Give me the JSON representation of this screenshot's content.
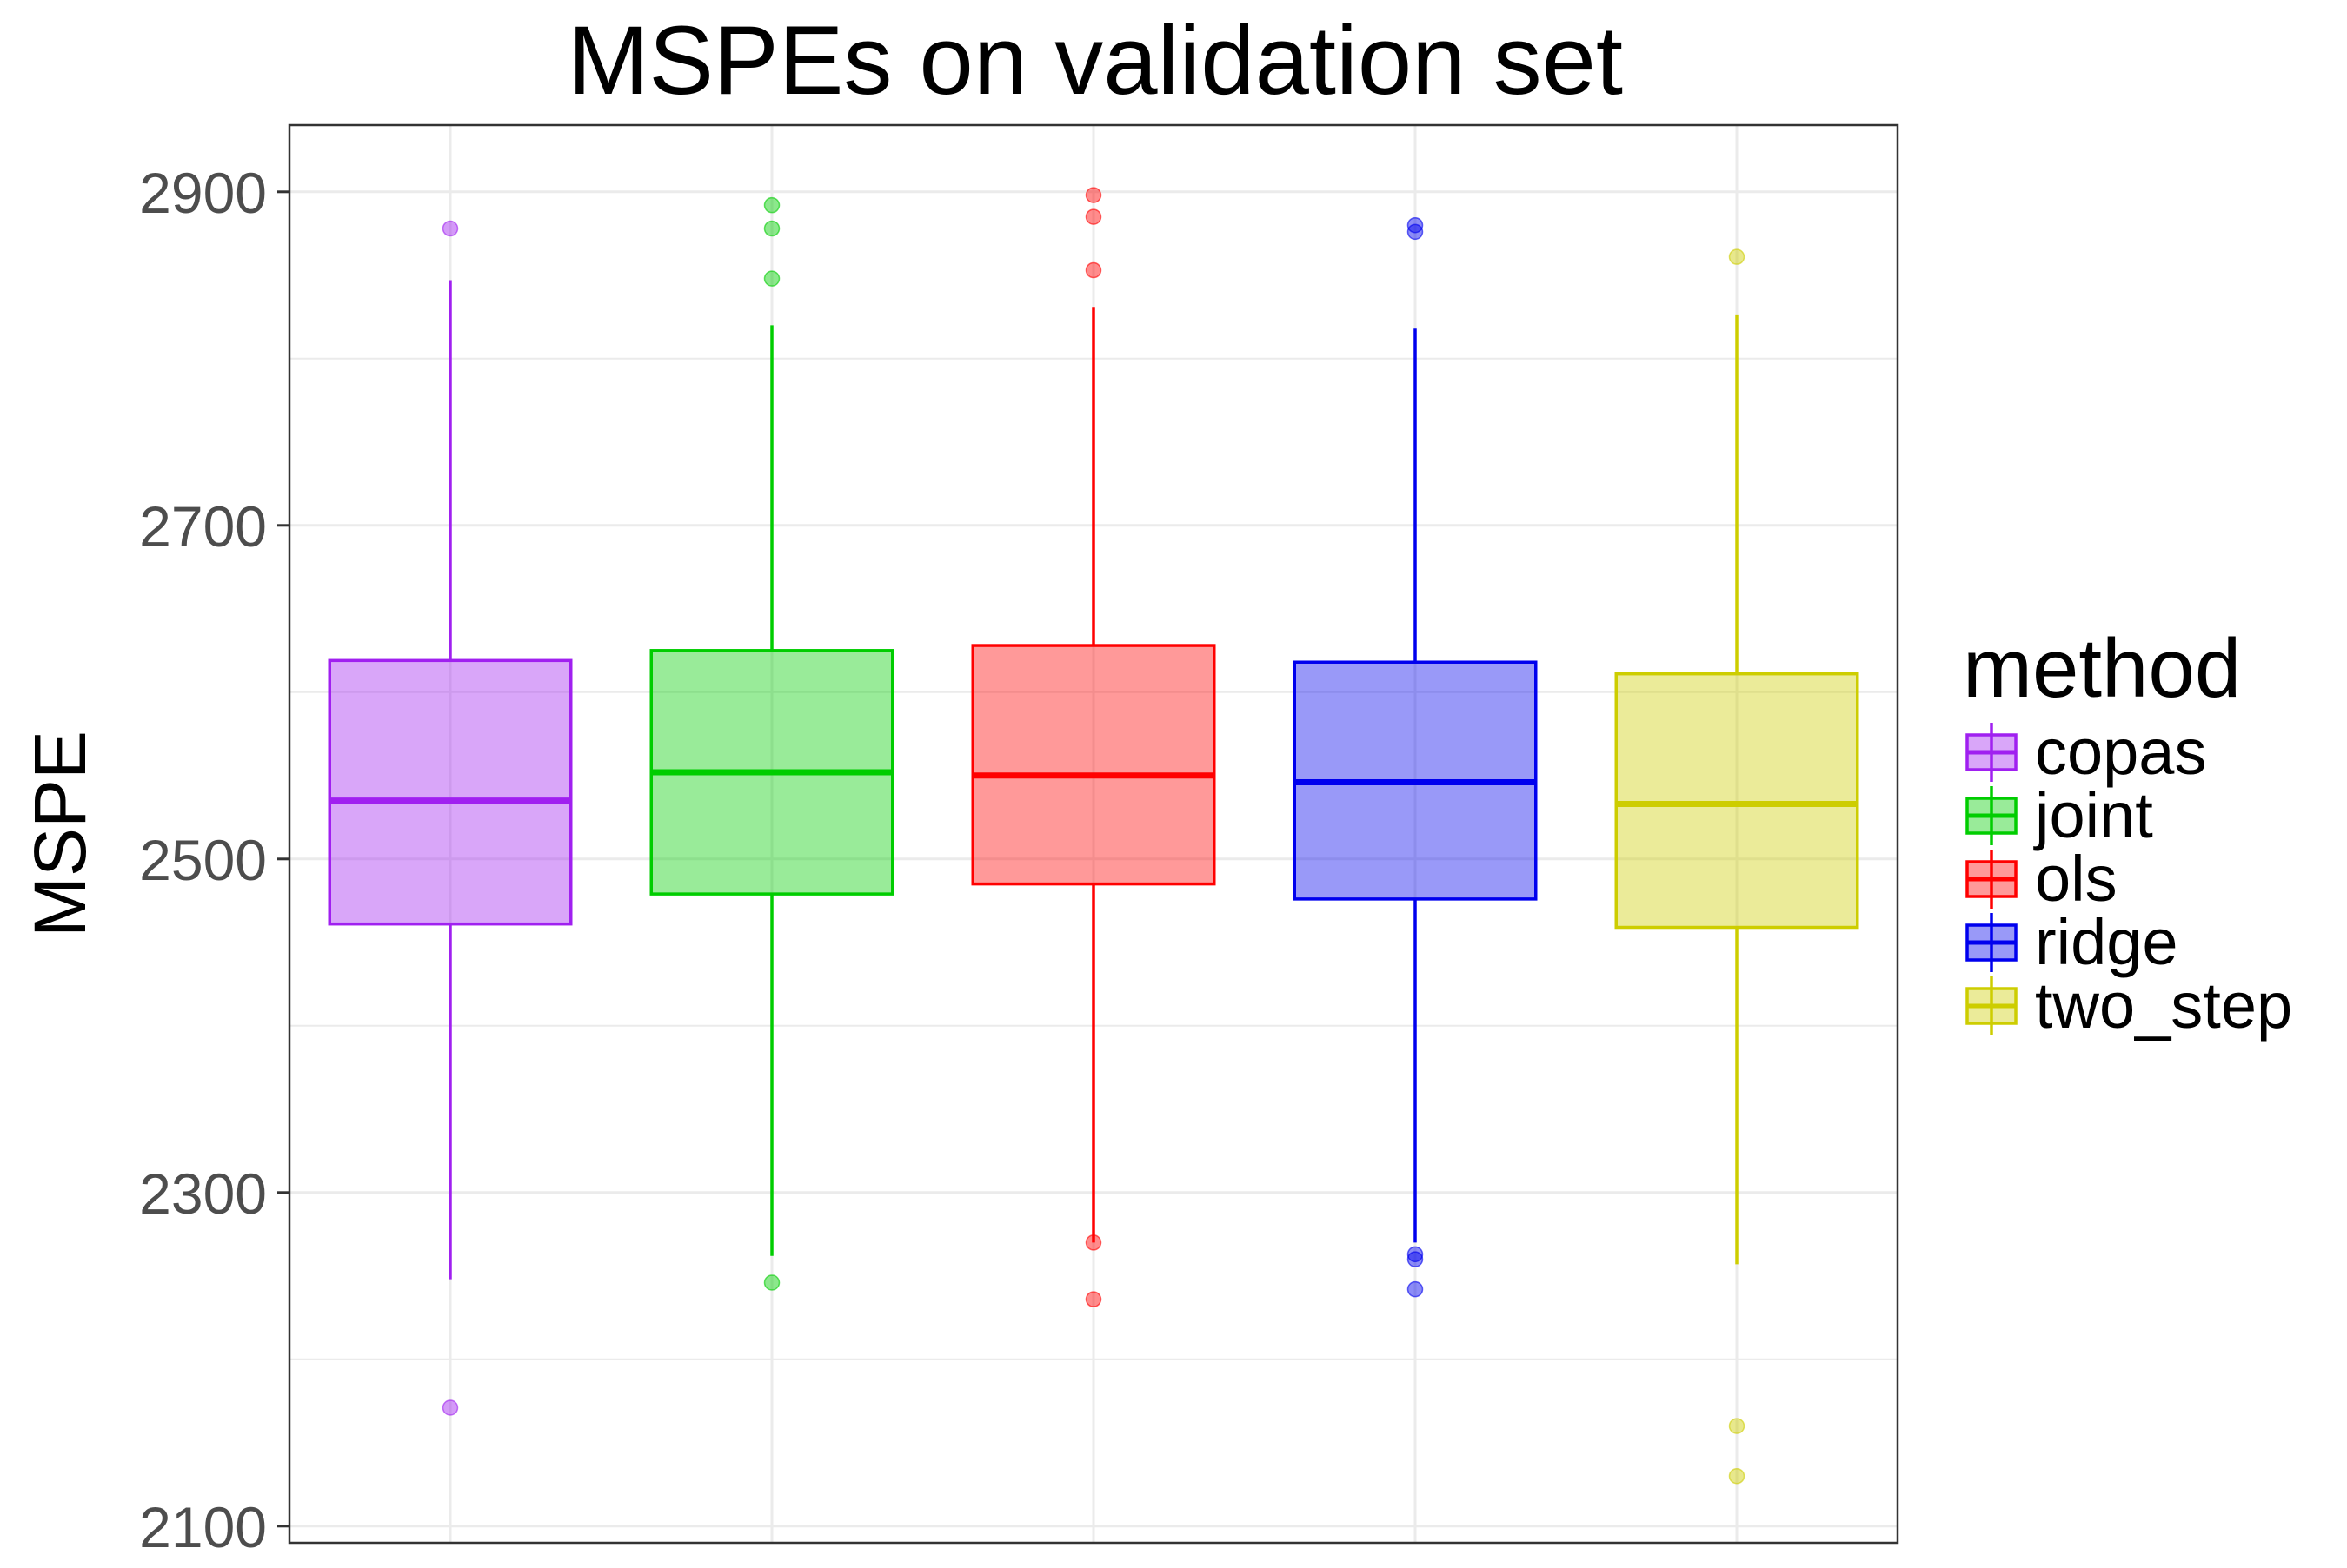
{
  "chart_data": {
    "type": "box",
    "title": "MSPEs on validation set",
    "xlabel": "",
    "ylabel": "MSPE",
    "ylim": [
      2090,
      2940
    ],
    "yticks": [
      2100,
      2300,
      2500,
      2700,
      2900
    ],
    "grid": true,
    "legend": {
      "title": "method",
      "position": "right"
    },
    "series": [
      {
        "name": "copas",
        "color": "#a020f0",
        "whisker_low": 2248,
        "q1": 2461,
        "median": 2535,
        "q3": 2619,
        "whisker_high": 2847,
        "outliers": [
          2878,
          2171
        ]
      },
      {
        "name": "joint",
        "color": "#00cd00",
        "whisker_low": 2262,
        "q1": 2479,
        "median": 2552,
        "q3": 2625,
        "whisker_high": 2820,
        "outliers": [
          2892,
          2878,
          2848,
          2246
        ]
      },
      {
        "name": "ols",
        "color": "#ff0000",
        "whisker_low": 2270,
        "q1": 2485,
        "median": 2550,
        "q3": 2628,
        "whisker_high": 2831,
        "outliers": [
          2898,
          2885,
          2853,
          2270,
          2236
        ]
      },
      {
        "name": "ridge",
        "color": "#0000ee",
        "whisker_low": 2270,
        "q1": 2476,
        "median": 2546,
        "q3": 2618,
        "whisker_high": 2818,
        "outliers": [
          2880,
          2876,
          2263,
          2260,
          2242
        ]
      },
      {
        "name": "two_step",
        "color": "#cdcd00",
        "whisker_low": 2257,
        "q1": 2459,
        "median": 2533,
        "q3": 2611,
        "whisker_high": 2826,
        "outliers": [
          2861,
          2160,
          2130
        ]
      }
    ]
  }
}
